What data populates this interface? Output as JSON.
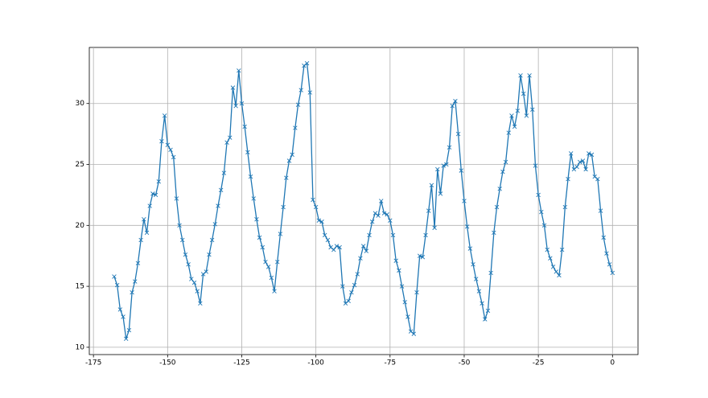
{
  "chart_data": {
    "type": "line",
    "marker": "x",
    "color": "#1f77b4",
    "grid": true,
    "xlim": [
      -176.4,
      8.6
    ],
    "ylim": [
      9.4,
      34.6
    ],
    "xticks": [
      -175,
      -150,
      -125,
      -100,
      -75,
      -50,
      -25,
      0
    ],
    "yticks": [
      10,
      15,
      20,
      25,
      30
    ],
    "x": [
      -168,
      -167,
      -166,
      -165,
      -164,
      -163,
      -162,
      -161,
      -160,
      -159,
      -158,
      -157,
      -156,
      -155,
      -154,
      -153,
      -152,
      -151,
      -150,
      -149,
      -148,
      -147,
      -146,
      -145,
      -144,
      -143,
      -142,
      -141,
      -140,
      -139,
      -138,
      -137,
      -136,
      -135,
      -134,
      -133,
      -132,
      -131,
      -130,
      -129,
      -128,
      -127,
      -126,
      -125,
      -124,
      -123,
      -122,
      -121,
      -120,
      -119,
      -118,
      -117,
      -116,
      -115,
      -114,
      -113,
      -112,
      -111,
      -110,
      -109,
      -108,
      -107,
      -106,
      -105,
      -104,
      -103,
      -102,
      -101,
      -100,
      -99,
      -98,
      -97,
      -96,
      -95,
      -94,
      -93,
      -92,
      -91,
      -90,
      -89,
      -88,
      -87,
      -86,
      -85,
      -84,
      -83,
      -82,
      -81,
      -80,
      -79,
      -78,
      -77,
      -76,
      -75,
      -74,
      -73,
      -72,
      -71,
      -70,
      -69,
      -68,
      -67,
      -66,
      -65,
      -64,
      -63,
      -62,
      -61,
      -60,
      -59,
      -58,
      -57,
      -56,
      -55,
      -54,
      -53,
      -52,
      -51,
      -50,
      -49,
      -48,
      -47,
      -46,
      -45,
      -44,
      -43,
      -42,
      -41,
      -40,
      -39,
      -38,
      -37,
      -36,
      -35,
      -34,
      -33,
      -32,
      -31,
      -30,
      -29,
      -28,
      -27,
      -26,
      -25,
      -24,
      -23,
      -22,
      -21,
      -20,
      -19,
      -18,
      -17,
      -16,
      -15,
      -14,
      -13,
      -12,
      -11,
      -10,
      -9,
      -8,
      -7,
      -6,
      -5,
      -4,
      -3,
      -2,
      -1,
      0
    ],
    "values": [
      15.8,
      15.1,
      13.1,
      12.5,
      10.7,
      11.4,
      14.5,
      15.4,
      16.9,
      18.8,
      20.5,
      19.4,
      21.6,
      22.6,
      22.5,
      23.6,
      26.9,
      29.0,
      26.6,
      26.2,
      25.6,
      22.2,
      20.0,
      18.8,
      17.6,
      16.8,
      15.6,
      15.3,
      14.6,
      13.6,
      16.0,
      16.2,
      17.6,
      18.8,
      20.1,
      21.6,
      22.9,
      24.3,
      26.8,
      27.2,
      31.3,
      29.8,
      32.7,
      30.0,
      28.1,
      26.0,
      24.0,
      22.2,
      20.5,
      19.0,
      18.2,
      17.0,
      16.6,
      15.7,
      14.6,
      17.0,
      19.3,
      21.5,
      23.9,
      25.3,
      25.8,
      28.0,
      29.9,
      31.1,
      33.1,
      33.3,
      30.9,
      22.1,
      21.5,
      20.4,
      20.3,
      19.2,
      18.8,
      18.2,
      18.0,
      18.3,
      18.2,
      15.0,
      13.6,
      13.8,
      14.5,
      15.1,
      16.0,
      17.3,
      18.3,
      17.9,
      19.2,
      20.3,
      21.0,
      20.8,
      22.0,
      21.0,
      20.9,
      20.4,
      19.2,
      17.1,
      16.3,
      15.0,
      13.7,
      12.5,
      11.3,
      11.1,
      14.5,
      17.5,
      17.4,
      19.2,
      21.2,
      23.3,
      19.8,
      24.6,
      22.6,
      24.9,
      25.0,
      26.4,
      29.8,
      30.2,
      27.5,
      24.5,
      22.0,
      19.9,
      18.1,
      16.8,
      15.6,
      14.6,
      13.6,
      12.3,
      13.0,
      16.1,
      19.4,
      21.5,
      23.0,
      24.4,
      25.2,
      27.6,
      29.0,
      28.1,
      29.4,
      32.3,
      30.8,
      29.0,
      32.3,
      29.5,
      24.9,
      22.5,
      21.1,
      20.0,
      18.0,
      17.3,
      16.6,
      16.2,
      15.9,
      18.0,
      21.5,
      23.8,
      25.9,
      24.6,
      24.8,
      25.2,
      25.3,
      24.6,
      25.9,
      25.8,
      24.0,
      23.8,
      21.2,
      19.0,
      17.7,
      16.8,
      16.1
    ]
  }
}
